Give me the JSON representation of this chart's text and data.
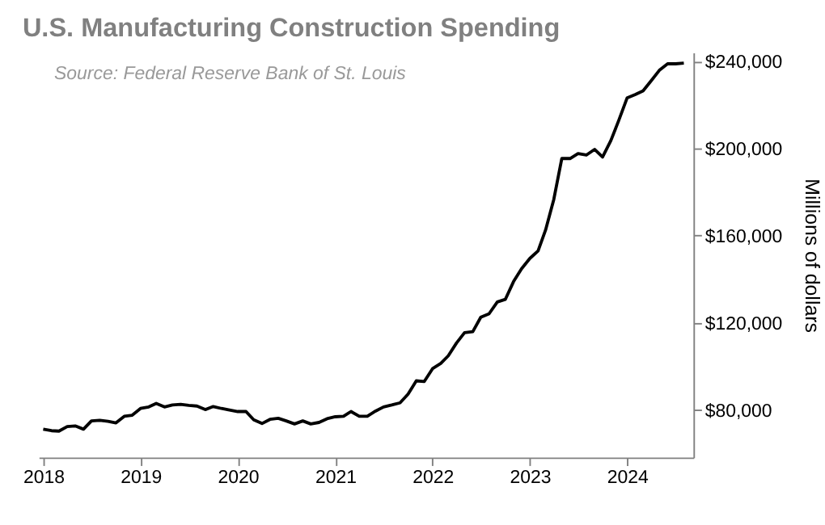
{
  "chart_data": {
    "type": "line",
    "title": "U.S. Manufacturing Construction Spending",
    "ylabel": "Millions of dollars",
    "annotations": [
      "Source: Federal Reserve Bank of St. Louis"
    ],
    "x": [
      "2018-01",
      "2018-02",
      "2018-03",
      "2018-04",
      "2018-05",
      "2018-06",
      "2018-07",
      "2018-08",
      "2018-09",
      "2018-10",
      "2018-11",
      "2018-12",
      "2019-01",
      "2019-02",
      "2019-03",
      "2019-04",
      "2019-05",
      "2019-06",
      "2019-07",
      "2019-08",
      "2019-09",
      "2019-10",
      "2019-11",
      "2019-12",
      "2020-01",
      "2020-02",
      "2020-03",
      "2020-04",
      "2020-05",
      "2020-06",
      "2020-07",
      "2020-08",
      "2020-09",
      "2020-10",
      "2020-11",
      "2020-12",
      "2021-01",
      "2021-02",
      "2021-03",
      "2021-04",
      "2021-05",
      "2021-06",
      "2021-07",
      "2021-08",
      "2021-09",
      "2021-10",
      "2021-11",
      "2021-12",
      "2022-01",
      "2022-02",
      "2022-03",
      "2022-04",
      "2022-05",
      "2022-06",
      "2022-07",
      "2022-08",
      "2022-09",
      "2022-10",
      "2022-11",
      "2022-12",
      "2023-01",
      "2023-02",
      "2023-03",
      "2023-04",
      "2023-05",
      "2023-06",
      "2023-07",
      "2023-08",
      "2023-09",
      "2023-10",
      "2023-11",
      "2023-12",
      "2024-01",
      "2024-02",
      "2024-03",
      "2024-04",
      "2024-05",
      "2024-06",
      "2024-07",
      "2024-08"
    ],
    "series": [
      {
        "color": "#000000",
        "values": [
          71000,
          70300,
          70100,
          72200,
          72500,
          71000,
          74800,
          75100,
          74600,
          73900,
          76900,
          77400,
          80500,
          81200,
          82800,
          81200,
          82100,
          82400,
          81900,
          81600,
          80000,
          81400,
          80500,
          79800,
          79100,
          79100,
          75300,
          73600,
          75500,
          76000,
          74800,
          73400,
          74800,
          73400,
          74100,
          75800,
          76700,
          76900,
          79100,
          76900,
          76900,
          79300,
          81200,
          82100,
          83100,
          87100,
          93200,
          92900,
          98800,
          101200,
          104700,
          110600,
          115300,
          115800,
          122400,
          124000,
          129400,
          130600,
          138800,
          144700,
          149400,
          152900,
          162400,
          176500,
          195300,
          195300,
          197600,
          196900,
          199500,
          196000,
          203500,
          212900,
          223100,
          224700,
          226400,
          231100,
          235800,
          238800,
          238800,
          239100
        ]
      }
    ],
    "xlim": [
      "2017-12-15",
      "2024-09-06"
    ],
    "xticks": [
      "2018",
      "2019",
      "2020",
      "2021",
      "2022",
      "2023",
      "2024"
    ],
    "ylim": [
      58000,
      244000
    ],
    "yticks": [
      {
        "value": 80000,
        "label": "$80,000"
      },
      {
        "value": 120000,
        "label": "$120,000"
      },
      {
        "value": 160000,
        "label": "$160,000"
      },
      {
        "value": 200000,
        "label": "$200,000"
      },
      {
        "value": 240000,
        "label": "$240,000"
      }
    ],
    "grid": false,
    "marker": "none",
    "line_style": "solid"
  }
}
